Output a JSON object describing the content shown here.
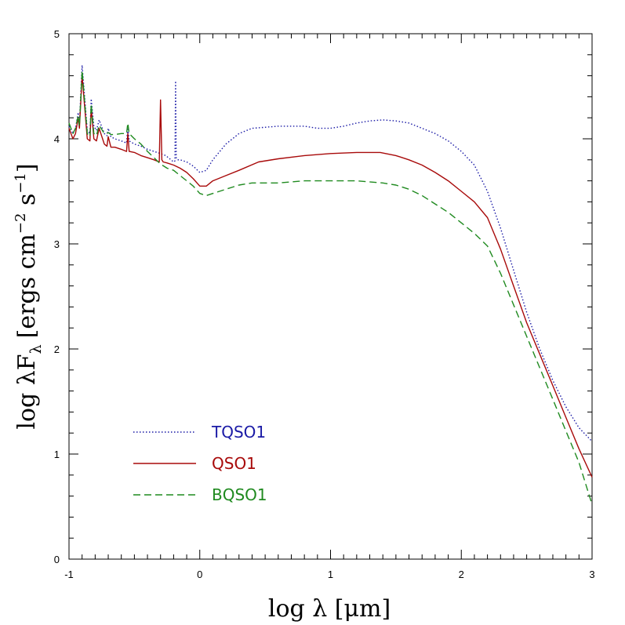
{
  "chart_data": {
    "type": "line",
    "title": "",
    "xlabel": "log λ [μm]",
    "ylabel": "log λF",
    "ylabel_subscript": "λ",
    "ylabel_units": "[ergs cm",
    "ylabel_exp1": "−2",
    "ylabel_units_mid": " s",
    "ylabel_exp2": "−1",
    "ylabel_units_end": "]",
    "xlim": [
      -1,
      3
    ],
    "ylim": [
      0,
      5
    ],
    "x_ticks": [
      "-1",
      "0",
      "1",
      "2",
      "3"
    ],
    "y_ticks": [
      "0",
      "1",
      "2",
      "3",
      "4",
      "5"
    ],
    "grid": false,
    "legend_position": "bottom-left",
    "series": [
      {
        "name": "TQSO1",
        "color": "#1a1aa6",
        "dash": "dotted",
        "x": [
          -1,
          -0.97,
          -0.95,
          -0.93,
          -0.92,
          -0.9,
          -0.86,
          -0.84,
          -0.83,
          -0.81,
          -0.79,
          -0.77,
          -0.73,
          -0.71,
          -0.7,
          -0.68,
          -0.65,
          -0.6,
          -0.56,
          -0.55,
          -0.54,
          -0.5,
          -0.45,
          -0.4,
          -0.35,
          -0.3,
          -0.26,
          -0.24,
          -0.22,
          -0.2,
          -0.19,
          -0.185,
          -0.18,
          -0.17,
          -0.15,
          -0.1,
          -0.05,
          0,
          0.05,
          0.1,
          0.2,
          0.3,
          0.4,
          0.5,
          0.6,
          0.7,
          0.8,
          0.9,
          1.0,
          1.1,
          1.2,
          1.3,
          1.4,
          1.5,
          1.6,
          1.7,
          1.8,
          1.9,
          2.0,
          2.1,
          2.2,
          2.3,
          2.4,
          2.5,
          2.6,
          2.7,
          2.8,
          2.9,
          3.0
        ],
        "y": [
          4.12,
          4.05,
          4.1,
          4.25,
          4.15,
          4.7,
          4.08,
          4.05,
          4.38,
          4.12,
          4.08,
          4.18,
          4.05,
          4.03,
          4.1,
          4.02,
          4.0,
          3.98,
          3.96,
          4.12,
          3.98,
          3.95,
          3.93,
          3.9,
          3.88,
          3.86,
          3.84,
          3.82,
          3.8,
          3.78,
          3.79,
          4.55,
          3.82,
          3.8,
          3.8,
          3.78,
          3.74,
          3.68,
          3.7,
          3.8,
          3.95,
          4.05,
          4.1,
          4.11,
          4.12,
          4.12,
          4.12,
          4.1,
          4.1,
          4.12,
          4.15,
          4.17,
          4.18,
          4.17,
          4.15,
          4.1,
          4.05,
          3.98,
          3.88,
          3.75,
          3.5,
          3.15,
          2.75,
          2.35,
          2.0,
          1.7,
          1.45,
          1.25,
          1.12
        ]
      },
      {
        "name": "QSO1",
        "color": "#a80a0a",
        "dash": "solid",
        "x": [
          -1,
          -0.97,
          -0.95,
          -0.93,
          -0.92,
          -0.9,
          -0.86,
          -0.84,
          -0.83,
          -0.81,
          -0.79,
          -0.77,
          -0.73,
          -0.71,
          -0.7,
          -0.68,
          -0.65,
          -0.6,
          -0.56,
          -0.55,
          -0.54,
          -0.5,
          -0.45,
          -0.4,
          -0.35,
          -0.31,
          -0.3,
          -0.29,
          -0.28,
          -0.25,
          -0.2,
          -0.15,
          -0.1,
          -0.05,
          0,
          0.05,
          0.1,
          0.2,
          0.3,
          0.45,
          0.6,
          0.8,
          1.0,
          1.2,
          1.38,
          1.5,
          1.6,
          1.7,
          1.8,
          1.9,
          2.0,
          2.1,
          2.2,
          2.3,
          2.4,
          2.5,
          2.6,
          2.7,
          2.8,
          2.9,
          3.0
        ],
        "y": [
          4.1,
          4.0,
          4.05,
          4.2,
          4.1,
          4.6,
          4.0,
          3.98,
          4.3,
          4.0,
          3.98,
          4.1,
          3.95,
          3.93,
          4.02,
          3.92,
          3.92,
          3.9,
          3.88,
          4.05,
          3.88,
          3.87,
          3.84,
          3.82,
          3.8,
          3.78,
          4.37,
          3.8,
          3.78,
          3.77,
          3.75,
          3.72,
          3.68,
          3.62,
          3.55,
          3.55,
          3.6,
          3.65,
          3.7,
          3.78,
          3.81,
          3.84,
          3.86,
          3.87,
          3.87,
          3.84,
          3.8,
          3.75,
          3.68,
          3.6,
          3.5,
          3.4,
          3.25,
          2.95,
          2.6,
          2.25,
          1.95,
          1.65,
          1.35,
          1.05,
          0.78
        ]
      },
      {
        "name": "BQSO1",
        "color": "#1f8a1f",
        "dash": "dashed",
        "x": [
          -1,
          -0.97,
          -0.95,
          -0.93,
          -0.92,
          -0.9,
          -0.86,
          -0.84,
          -0.83,
          -0.81,
          -0.79,
          -0.77,
          -0.73,
          -0.71,
          -0.7,
          -0.68,
          -0.65,
          -0.6,
          -0.56,
          -0.55,
          -0.54,
          -0.5,
          -0.45,
          -0.4,
          -0.35,
          -0.3,
          -0.25,
          -0.2,
          -0.15,
          -0.1,
          -0.05,
          0,
          0.05,
          0.1,
          0.2,
          0.3,
          0.4,
          0.6,
          0.8,
          1.0,
          1.2,
          1.4,
          1.5,
          1.6,
          1.7,
          1.8,
          1.9,
          2.0,
          2.1,
          2.2,
          2.3,
          2.4,
          2.5,
          2.6,
          2.7,
          2.8,
          2.9,
          3.0
        ],
        "y": [
          4.15,
          4.05,
          4.1,
          4.22,
          4.12,
          4.65,
          4.05,
          4.02,
          4.33,
          4.05,
          4.03,
          4.13,
          4.05,
          4.05,
          4.06,
          4.04,
          4.04,
          4.05,
          4.05,
          4.15,
          4.05,
          4.0,
          3.95,
          3.88,
          3.82,
          3.76,
          3.72,
          3.7,
          3.65,
          3.6,
          3.55,
          3.48,
          3.46,
          3.48,
          3.52,
          3.56,
          3.58,
          3.58,
          3.6,
          3.6,
          3.6,
          3.58,
          3.56,
          3.52,
          3.46,
          3.38,
          3.3,
          3.2,
          3.1,
          2.98,
          2.72,
          2.42,
          2.12,
          1.82,
          1.52,
          1.22,
          0.92,
          0.52
        ]
      }
    ]
  }
}
